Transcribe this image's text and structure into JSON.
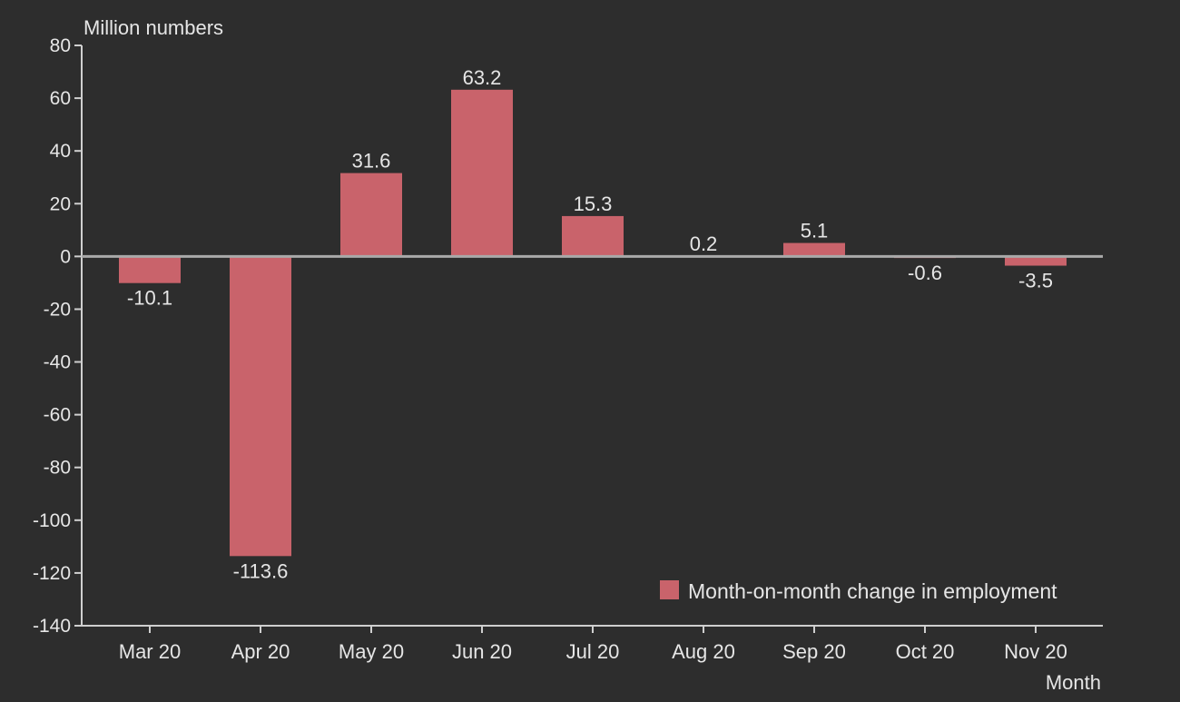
{
  "chart_data": {
    "type": "bar",
    "categories": [
      "Mar 20",
      "Apr 20",
      "May 20",
      "Jun 20",
      "Jul 20",
      "Aug 20",
      "Sep 20",
      "Oct 20",
      "Nov 20"
    ],
    "series": [
      {
        "name": "Month-on-month change in employment",
        "values": [
          -10.1,
          -113.6,
          31.6,
          63.2,
          15.3,
          0.2,
          5.1,
          -0.6,
          -3.5
        ],
        "color": "#c9636b"
      }
    ],
    "data_labels": [
      "-10.1",
      "-113.6",
      "31.6",
      "63.2",
      "15.3",
      "0.2",
      "5.1",
      "-0.6",
      "-3.5"
    ],
    "ylabel": "Million numbers",
    "xlabel": "Month",
    "ylim": [
      -140,
      80
    ],
    "yticks": [
      80,
      60,
      40,
      20,
      0,
      -20,
      -40,
      -60,
      -80,
      -100,
      -120,
      -140
    ],
    "ytick_labels": [
      "80",
      "60",
      "40",
      "20",
      "0",
      "-20",
      "-40",
      "-60",
      "-80",
      "-100",
      "-120",
      "-140"
    ],
    "legend": {
      "label": "Month-on-month change in employment",
      "placement": "bottom-right"
    },
    "grid": false,
    "background": "#2d2d2d"
  }
}
